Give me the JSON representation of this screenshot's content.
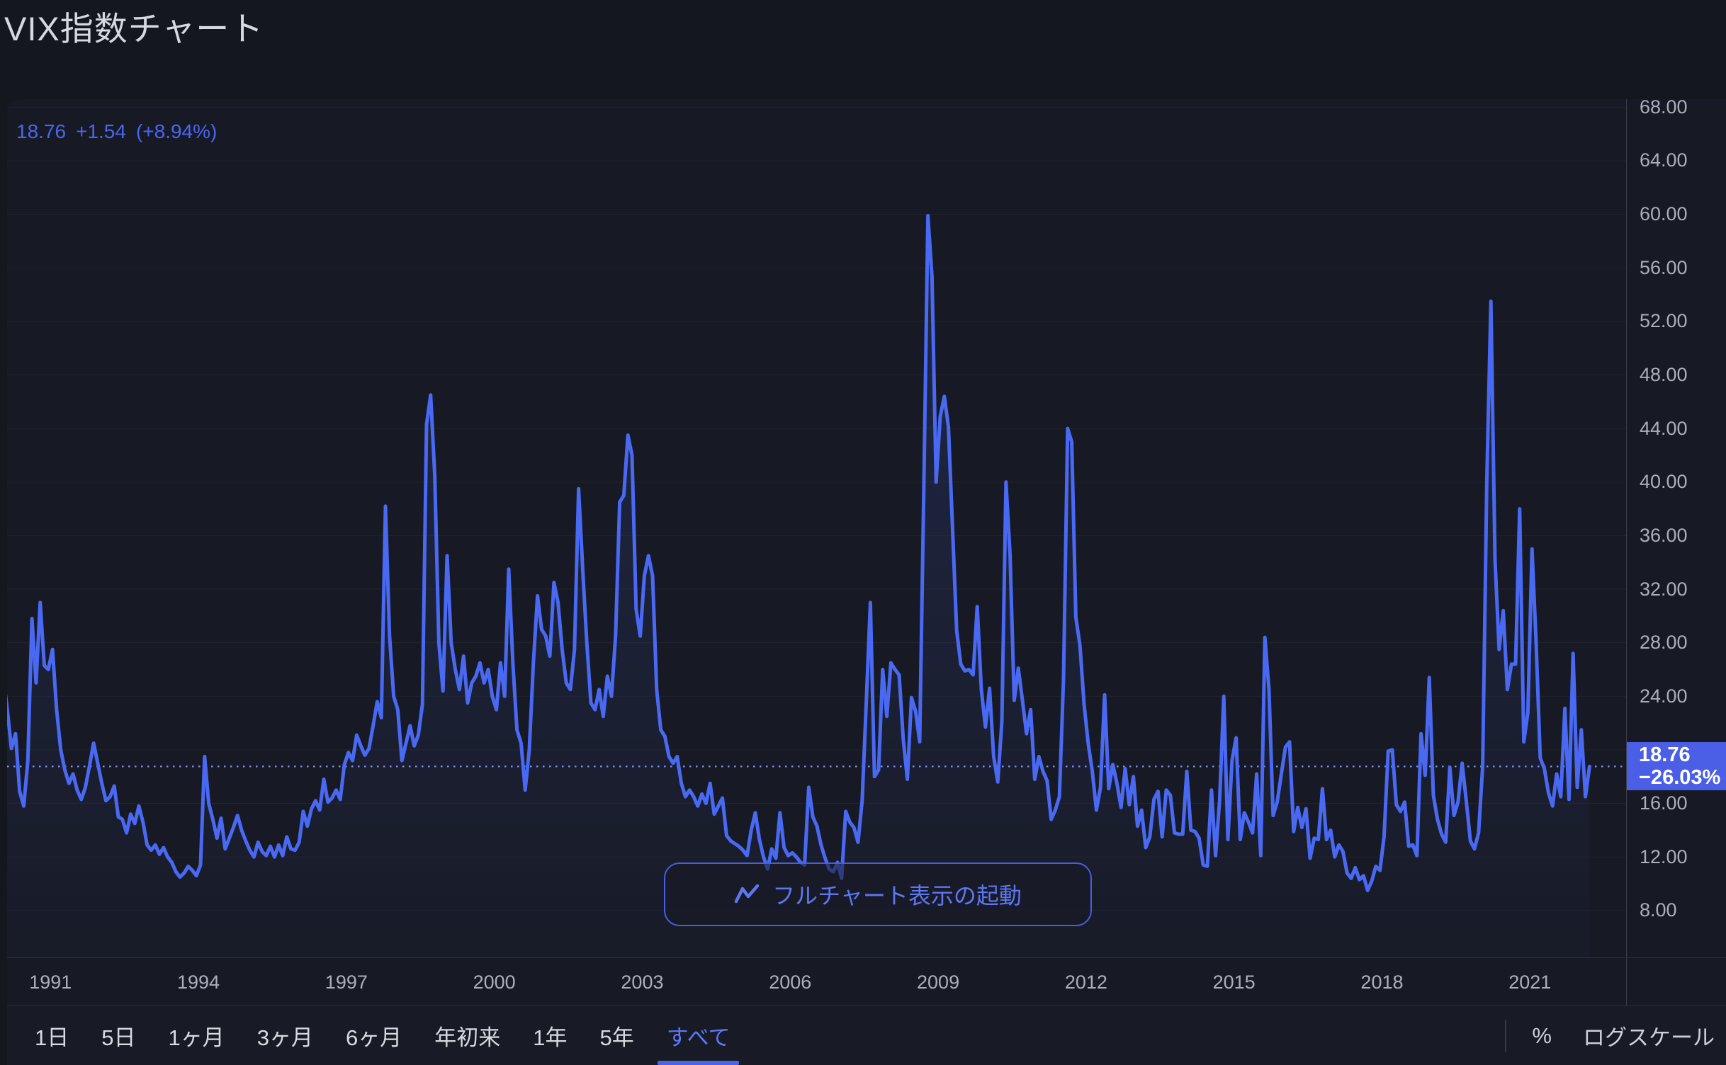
{
  "title": "VIX指数チャート",
  "quote": {
    "price": "18.76",
    "change": "+1.54",
    "change_pct": "(+8.94%)"
  },
  "price_badge": {
    "price": "18.76",
    "change_pct": "−26.03%"
  },
  "full_chart_button": {
    "label": "フルチャート表示の起動",
    "icon": "line-chart-zigzag-icon"
  },
  "toolbar": {
    "ranges": [
      "1日",
      "5日",
      "1ヶ月",
      "3ヶ月",
      "6ヶ月",
      "年初来",
      "1年",
      "5年",
      "すべて"
    ],
    "selected_range": "すべて",
    "percent_label": "%",
    "log_scale_label": "ログスケール"
  },
  "colors": {
    "page_bg": "#15171f",
    "panel_bg": "#171a24",
    "line": "#4a69f2",
    "area_fill_top": "rgba(74,105,242,0.16)",
    "area_fill_bottom": "rgba(74,105,242,0.02)",
    "dotted_price_line": "#7d90f4",
    "badge_bg": "#4b5fe6",
    "axis_text": "#abaebc",
    "title_text": "#d6d9e1",
    "selected_tab": "#5d77f7",
    "grid": "rgba(247,249,252,0.045)"
  },
  "chart_data": {
    "type": "area",
    "title": "VIX指数チャート",
    "xlabel": "",
    "ylabel": "",
    "legend": null,
    "grid": "horizontal-faint",
    "x_start_year": 1990,
    "x_start_month": 1,
    "points_per_year": 12,
    "xlim_years": [
      1990.12,
      2022.95
    ],
    "ylim": [
      4.5,
      68.6
    ],
    "x_ticks": [
      1991,
      1994,
      1997,
      2000,
      2003,
      2006,
      2009,
      2012,
      2015,
      2018,
      2021
    ],
    "y_ticks": [
      68,
      64,
      60,
      56,
      52,
      48,
      44,
      40,
      36,
      32,
      28,
      24,
      20,
      16,
      12,
      8
    ],
    "current_value": 18.76,
    "current_change_pct": -26.03,
    "values": [
      25.5,
      23.0,
      20.1,
      21.2,
      16.9,
      15.8,
      19.2,
      29.8,
      25.0,
      31.0,
      26.3,
      26.0,
      27.5,
      23.0,
      20.0,
      18.5,
      17.5,
      18.2,
      17.0,
      16.3,
      17.2,
      18.8,
      20.5,
      19.0,
      17.5,
      16.2,
      16.5,
      17.3,
      15.0,
      14.8,
      13.8,
      15.2,
      14.5,
      15.8,
      14.6,
      12.9,
      12.5,
      12.9,
      12.2,
      12.7,
      12.0,
      11.6,
      10.9,
      10.5,
      10.8,
      11.3,
      11.0,
      10.6,
      11.4,
      19.5,
      16.0,
      14.8,
      13.4,
      14.9,
      12.6,
      13.4,
      14.2,
      15.1,
      14.0,
      13.2,
      12.5,
      12.0,
      13.1,
      12.4,
      12.1,
      12.8,
      12.0,
      12.9,
      12.1,
      13.5,
      12.6,
      12.5,
      13.1,
      15.4,
      14.3,
      15.6,
      16.2,
      15.5,
      17.8,
      16.1,
      16.4,
      17.0,
      16.3,
      18.9,
      19.8,
      19.2,
      21.1,
      20.3,
      19.6,
      20.1,
      21.8,
      23.6,
      22.4,
      38.2,
      28.5,
      24.0,
      23.0,
      19.2,
      20.5,
      21.8,
      20.3,
      21.1,
      23.4,
      44.3,
      46.5,
      40.5,
      28.0,
      24.4,
      34.5,
      28.0,
      26.0,
      24.5,
      27.0,
      23.5,
      25.0,
      25.5,
      26.5,
      25.0,
      26.0,
      24.0,
      23.0,
      26.5,
      24.0,
      33.5,
      26.5,
      21.5,
      20.5,
      17.0,
      20.0,
      26.5,
      31.5,
      29.0,
      28.5,
      27.0,
      32.5,
      31.0,
      27.5,
      25.0,
      24.5,
      27.5,
      39.5,
      33.5,
      28.0,
      23.5,
      23.0,
      24.5,
      22.5,
      25.5,
      24.0,
      28.5,
      38.5,
      39.0,
      43.5,
      42.0,
      30.5,
      28.5,
      33.0,
      34.5,
      33.0,
      24.5,
      21.5,
      21.0,
      19.5,
      19.0,
      19.5,
      17.5,
      16.5,
      17.0,
      16.5,
      15.8,
      16.7,
      16.0,
      17.5,
      15.2,
      15.8,
      16.4,
      13.6,
      13.2,
      13.0,
      12.8,
      12.5,
      12.1,
      14.0,
      15.3,
      13.3,
      12.0,
      11.1,
      12.6,
      11.9,
      15.3,
      12.7,
      12.1,
      12.3,
      12.0,
      11.6,
      11.4,
      17.2,
      15.0,
      14.3,
      12.9,
      11.9,
      11.1,
      10.9,
      11.6,
      10.4,
      15.4,
      14.6,
      14.2,
      13.1,
      16.2,
      23.5,
      31.0,
      18.0,
      18.5,
      26.0,
      22.5,
      26.5,
      26.0,
      25.6,
      20.8,
      17.8,
      23.9,
      22.9,
      20.6,
      39.4,
      59.9,
      55.3,
      40.0,
      44.9,
      46.4,
      44.1,
      36.5,
      28.9,
      26.4,
      25.9,
      26.0,
      25.6,
      30.7,
      24.5,
      21.7,
      24.6,
      19.5,
      17.6,
      22.1,
      40.0,
      34.5,
      23.7,
      26.1,
      23.7,
      21.2,
      23.0,
      17.8,
      19.5,
      18.4,
      17.7,
      14.8,
      15.5,
      16.5,
      25.3,
      44.0,
      43.0,
      29.9,
      27.8,
      23.4,
      20.5,
      18.4,
      15.5,
      17.2,
      24.1,
      17.1,
      18.9,
      17.5,
      15.7,
      18.6,
      15.9,
      18.0,
      14.3,
      15.5,
      12.7,
      13.5,
      16.3,
      16.9,
      13.5,
      17.0,
      16.6,
      13.8,
      13.7,
      13.7,
      18.4,
      14.0,
      13.9,
      13.4,
      11.4,
      11.3,
      17.0,
      12.1,
      16.3,
      24.0,
      13.3,
      19.2,
      20.9,
      13.3,
      15.3,
      14.6,
      13.8,
      18.2,
      12.1,
      28.4,
      24.5,
      15.1,
      16.1,
      18.2,
      20.2,
      20.6,
      13.9,
      15.7,
      14.2,
      15.6,
      11.9,
      13.4,
      13.3,
      17.1,
      13.3,
      14.0,
      12.0,
      12.9,
      12.4,
      10.8,
      10.4,
      11.2,
      10.3,
      10.6,
      9.5,
      10.2,
      11.3,
      11.0,
      13.5,
      19.9,
      20.0,
      15.9,
      15.4,
      16.1,
      12.8,
      12.9,
      12.1,
      21.2,
      18.1,
      25.4,
      16.6,
      14.8,
      13.7,
      13.1,
      18.7,
      15.1,
      16.1,
      19.0,
      16.2,
      13.2,
      12.6,
      13.8,
      18.8,
      40.1,
      53.5,
      34.2,
      27.5,
      30.4,
      24.5,
      26.4,
      26.4,
      38.0,
      20.6,
      22.8,
      35.0,
      28.0,
      19.4,
      18.6,
      16.8,
      15.8,
      18.2,
      16.5,
      23.1,
      16.3,
      27.2,
      17.2,
      21.5,
      16.5,
      18.76
    ]
  }
}
